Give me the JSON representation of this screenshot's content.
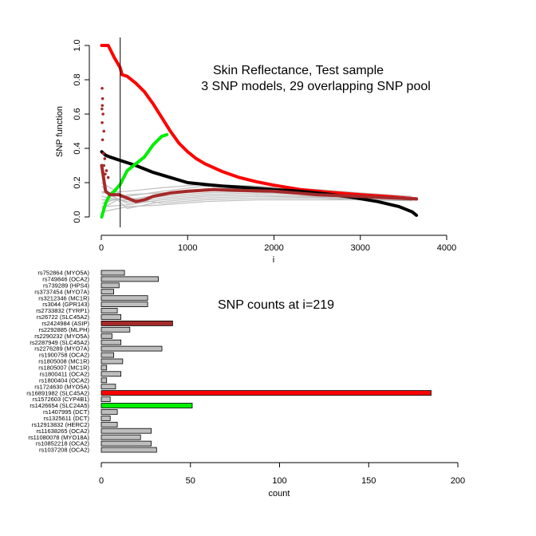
{
  "chart_data": [
    {
      "type": "line",
      "title_line1": "Skin Reflectance, Test sample",
      "title_line2": "3 SNP models, 29 overlapping SNP pool",
      "xlabel": "i",
      "ylabel": "SNP function",
      "xlim": [
        0,
        4000
      ],
      "ylim": [
        0,
        1.0
      ],
      "xticks": [
        0,
        1000,
        2000,
        3000,
        4000
      ],
      "yticks": [
        0.0,
        0.2,
        0.4,
        0.6,
        0.8,
        1.0
      ],
      "ytick_labels": [
        "0.0",
        "0.2",
        "0.4",
        "0.6",
        "0.8",
        "1.0"
      ],
      "vline_x": 219,
      "grid": false,
      "series": [
        {
          "color": "#ff0000",
          "points": [
            [
              5,
              1.0
            ],
            [
              80,
              1.0
            ],
            [
              150,
              0.93
            ],
            [
              219,
              0.87
            ],
            [
              240,
              0.83
            ],
            [
              300,
              0.82
            ],
            [
              400,
              0.78
            ],
            [
              500,
              0.73
            ],
            [
              600,
              0.66
            ],
            [
              700,
              0.58
            ],
            [
              800,
              0.5
            ],
            [
              900,
              0.43
            ],
            [
              1000,
              0.38
            ],
            [
              1100,
              0.34
            ],
            [
              1200,
              0.31
            ],
            [
              1400,
              0.265
            ],
            [
              1600,
              0.23
            ],
            [
              1800,
              0.205
            ],
            [
              2000,
              0.185
            ],
            [
              2300,
              0.16
            ],
            [
              2600,
              0.145
            ],
            [
              3000,
              0.13
            ],
            [
              3300,
              0.12
            ],
            [
              3650,
              0.105
            ]
          ]
        },
        {
          "color": "#000000",
          "points": [
            [
              5,
              0.38
            ],
            [
              50,
              0.36
            ],
            [
              100,
              0.35
            ],
            [
              219,
              0.33
            ],
            [
              400,
              0.3
            ],
            [
              600,
              0.26
            ],
            [
              800,
              0.23
            ],
            [
              1000,
              0.2
            ],
            [
              1200,
              0.19
            ],
            [
              1400,
              0.18
            ],
            [
              1700,
              0.17
            ],
            [
              2000,
              0.16
            ],
            [
              2300,
              0.15
            ],
            [
              2600,
              0.135
            ],
            [
              2900,
              0.115
            ],
            [
              3200,
              0.09
            ],
            [
              3450,
              0.06
            ],
            [
              3600,
              0.03
            ],
            [
              3650,
              0.01
            ]
          ]
        },
        {
          "color": "#00ee00",
          "points": [
            [
              5,
              0.0
            ],
            [
              50,
              0.08
            ],
            [
              100,
              0.13
            ],
            [
              150,
              0.15
            ],
            [
              219,
              0.19
            ],
            [
              300,
              0.27
            ],
            [
              400,
              0.31
            ],
            [
              500,
              0.35
            ],
            [
              600,
              0.42
            ],
            [
              700,
              0.47
            ],
            [
              760,
              0.48
            ]
          ]
        },
        {
          "color": "#a52a2a",
          "points": [
            [
              5,
              0.3
            ],
            [
              50,
              0.15
            ],
            [
              100,
              0.13
            ],
            [
              200,
              0.13
            ],
            [
              300,
              0.11
            ],
            [
              400,
              0.09
            ],
            [
              500,
              0.1
            ],
            [
              600,
              0.12
            ],
            [
              800,
              0.14
            ],
            [
              1000,
              0.15
            ],
            [
              1300,
              0.16
            ],
            [
              1600,
              0.155
            ],
            [
              2000,
              0.15
            ],
            [
              2500,
              0.13
            ],
            [
              3000,
              0.12
            ],
            [
              3400,
              0.11
            ],
            [
              3650,
              0.105
            ]
          ]
        }
      ],
      "scatter_points": [
        {
          "color": "#a52a2a",
          "x": 10,
          "y": 0.75
        },
        {
          "color": "#a52a2a",
          "x": 15,
          "y": 0.69
        },
        {
          "color": "#a52a2a",
          "x": 12,
          "y": 0.65
        },
        {
          "color": "#a52a2a",
          "x": 8,
          "y": 0.63
        },
        {
          "color": "#a52a2a",
          "x": 20,
          "y": 0.6
        },
        {
          "color": "#a52a2a",
          "x": 10,
          "y": 0.55
        },
        {
          "color": "#a52a2a",
          "x": 30,
          "y": 0.5
        },
        {
          "color": "#a52a2a",
          "x": 15,
          "y": 0.45
        },
        {
          "color": "#a52a2a",
          "x": 25,
          "y": 0.37
        },
        {
          "color": "#a52a2a",
          "x": 40,
          "y": 0.34
        },
        {
          "color": "#a52a2a",
          "x": 30,
          "y": 0.3
        },
        {
          "color": "#a52a2a",
          "x": 60,
          "y": 0.27
        },
        {
          "color": "#a52a2a",
          "x": 45,
          "y": 0.25
        },
        {
          "color": "#a52a2a",
          "x": 80,
          "y": 0.23
        }
      ],
      "gray_series_color": "#bebebe",
      "gray_series": [
        [
          [
            5,
            0.05
          ],
          [
            300,
            0.13
          ],
          [
            700,
            0.14
          ],
          [
            1200,
            0.16
          ],
          [
            1800,
            0.17
          ],
          [
            2500,
            0.14
          ],
          [
            3000,
            0.12
          ],
          [
            3600,
            0.1
          ]
        ],
        [
          [
            5,
            0.08
          ],
          [
            300,
            0.12
          ],
          [
            700,
            0.15
          ],
          [
            1200,
            0.18
          ],
          [
            1800,
            0.17
          ],
          [
            2500,
            0.15
          ],
          [
            3000,
            0.13
          ],
          [
            3600,
            0.11
          ]
        ],
        [
          [
            5,
            0.1
          ],
          [
            300,
            0.1
          ],
          [
            700,
            0.13
          ],
          [
            1200,
            0.15
          ],
          [
            1800,
            0.16
          ],
          [
            2500,
            0.14
          ],
          [
            3000,
            0.12
          ],
          [
            3600,
            0.1
          ]
        ],
        [
          [
            5,
            0.12
          ],
          [
            300,
            0.09
          ],
          [
            700,
            0.12
          ],
          [
            1200,
            0.14
          ],
          [
            1800,
            0.15
          ],
          [
            2500,
            0.13
          ],
          [
            3000,
            0.12
          ],
          [
            3600,
            0.11
          ]
        ],
        [
          [
            5,
            0.15
          ],
          [
            300,
            0.08
          ],
          [
            700,
            0.11
          ],
          [
            1200,
            0.13
          ],
          [
            1800,
            0.14
          ],
          [
            2500,
            0.13
          ],
          [
            3000,
            0.115
          ],
          [
            3600,
            0.1
          ]
        ],
        [
          [
            5,
            0.06
          ],
          [
            300,
            0.07
          ],
          [
            700,
            0.1
          ],
          [
            1200,
            0.12
          ],
          [
            1800,
            0.13
          ],
          [
            2500,
            0.12
          ],
          [
            3000,
            0.11
          ],
          [
            3600,
            0.1
          ]
        ],
        [
          [
            5,
            0.18
          ],
          [
            300,
            0.05
          ],
          [
            700,
            0.09
          ],
          [
            1200,
            0.11
          ],
          [
            1800,
            0.12
          ],
          [
            2500,
            0.115
          ],
          [
            3000,
            0.105
          ],
          [
            3600,
            0.1
          ]
        ],
        [
          [
            5,
            0.2
          ],
          [
            300,
            0.11
          ],
          [
            700,
            0.08
          ],
          [
            1200,
            0.1
          ],
          [
            1800,
            0.11
          ],
          [
            2500,
            0.11
          ],
          [
            3000,
            0.1
          ],
          [
            3600,
            0.095
          ]
        ],
        [
          [
            5,
            0.03
          ],
          [
            300,
            0.06
          ],
          [
            700,
            0.07
          ],
          [
            1200,
            0.09
          ],
          [
            1800,
            0.1
          ],
          [
            2500,
            0.1
          ],
          [
            3000,
            0.1
          ],
          [
            3600,
            0.095
          ]
        ],
        [
          [
            5,
            0.14
          ],
          [
            300,
            0.15
          ],
          [
            700,
            0.17
          ],
          [
            1200,
            0.19
          ],
          [
            1800,
            0.18
          ],
          [
            2500,
            0.16
          ],
          [
            3000,
            0.14
          ],
          [
            3600,
            0.12
          ]
        ]
      ]
    },
    {
      "type": "bar",
      "orientation": "horizontal",
      "title": "SNP counts at i=219",
      "xlabel": "count",
      "xlim": [
        0,
        200
      ],
      "xticks": [
        0,
        50,
        100,
        150,
        200
      ],
      "categories": [
        "rs752864 (MYO5A)",
        "rs749846 (OCA2)",
        "rs739289 (HPS4)",
        "rs3737454 (MYO7A)",
        "rs3212346 (MC1R)",
        "rs3044 (GPR143)",
        "rs2733832 (TYRP1)",
        "rs26722 (SLC45A2)",
        "rs2424984 (ASIP)",
        "rs2292885 (MLPH)",
        "rs2290232 (MYO5A)",
        "rs2287949 (SLC45A2)",
        "rs2276289 (MYO7A)",
        "rs1900758 (OCA2)",
        "rs1805008 (MC1R)",
        "rs1805007 (MC1R)",
        "rs1800411 (OCA2)",
        "rs1800404 (OCA2)",
        "rs1724630 (MYO5A)",
        "rs16891982 (SLC45A2)",
        "rs1572603 (CYP4B1)",
        "rs1426654 (SLC24A5)",
        "rs1407995 (DCT)",
        "rs1325611 (DCT)",
        "rs12913832 (HERC2)",
        "rs11638265 (OCA2)",
        "rs11080078 (MYO18A)",
        "rs10852218 (OCA2)",
        "rs1037208 (OCA2)"
      ],
      "values": [
        13,
        32,
        10,
        7,
        26,
        26,
        9,
        11,
        40,
        16,
        6,
        11,
        34,
        7,
        12,
        3,
        11,
        3,
        8,
        185,
        5,
        51,
        9,
        5,
        9,
        28,
        22,
        28,
        31
      ],
      "colors": [
        "#bebebe",
        "#bebebe",
        "#bebebe",
        "#bebebe",
        "#bebebe",
        "#bebebe",
        "#bebebe",
        "#bebebe",
        "#a52a2a",
        "#bebebe",
        "#bebebe",
        "#bebebe",
        "#bebebe",
        "#bebebe",
        "#bebebe",
        "#bebebe",
        "#bebebe",
        "#bebebe",
        "#bebebe",
        "#ff0000",
        "#bebebe",
        "#00ee00",
        "#bebebe",
        "#bebebe",
        "#bebebe",
        "#bebebe",
        "#bebebe",
        "#bebebe",
        "#bebebe"
      ]
    }
  ]
}
